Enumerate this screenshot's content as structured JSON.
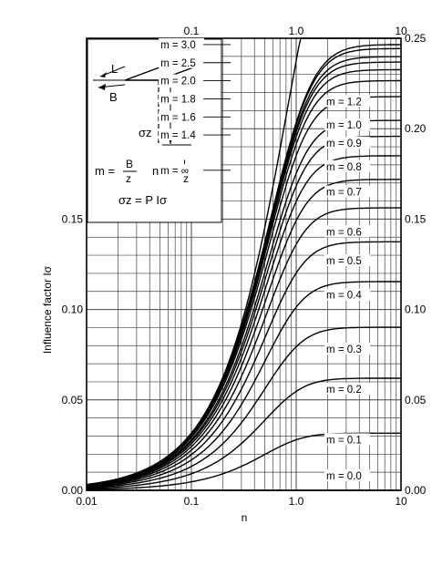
{
  "chart_data": {
    "type": "line",
    "xscale": "log",
    "xlim": [
      0.01,
      10
    ],
    "ylim": [
      0.0,
      0.25
    ],
    "xlabel": "n",
    "ylabel": "Influence factor Iσ",
    "grid": true,
    "bottom_ticks": [
      {
        "value": 0.01,
        "label": "0.01"
      },
      {
        "value": 0.1,
        "label": "0.1"
      },
      {
        "value": 1.0,
        "label": "1.0"
      },
      {
        "value": 10,
        "label": "10"
      }
    ],
    "top_ticks": [
      {
        "value": 0.1,
        "label": "0.1"
      },
      {
        "value": 1.0,
        "label": "1.0"
      },
      {
        "value": 10,
        "label": "10"
      }
    ],
    "left_ticks": [
      {
        "value": 0.0,
        "label": "0.00"
      },
      {
        "value": 0.05,
        "label": "0.05"
      },
      {
        "value": 0.1,
        "label": "0.10"
      },
      {
        "value": 0.15,
        "label": "0.15"
      }
    ],
    "right_ticks": [
      {
        "value": 0.0,
        "label": "0.00"
      },
      {
        "value": 0.05,
        "label": "0.05"
      },
      {
        "value": 0.1,
        "label": "0.10"
      },
      {
        "value": 0.15,
        "label": "0.15"
      },
      {
        "value": 0.2,
        "label": "0.20"
      },
      {
        "value": 0.25,
        "label": "0.25"
      }
    ],
    "series": [
      {
        "name": "m = 0.0",
        "m": 0.0,
        "asymptote": 0.0,
        "label_n": 1.9,
        "label_y": 0.006,
        "side": "right"
      },
      {
        "name": "m = 0.1",
        "m": 0.1,
        "asymptote": 0.0385,
        "label_n": 1.9,
        "label_y": 0.026,
        "side": "right"
      },
      {
        "name": "m = 0.2",
        "m": 0.2,
        "asymptote": 0.0675,
        "label_n": 1.9,
        "label_y": 0.054,
        "side": "right"
      },
      {
        "name": "m = 0.3",
        "m": 0.3,
        "asymptote": 0.0916,
        "label_n": 1.9,
        "label_y": 0.076,
        "side": "right"
      },
      {
        "name": "m = 0.4",
        "m": 0.4,
        "asymptote": 0.1142,
        "label_n": 1.9,
        "label_y": 0.106,
        "side": "right"
      },
      {
        "name": "m = 0.5",
        "m": 0.5,
        "asymptote": 0.1305,
        "label_n": 1.9,
        "label_y": 0.125,
        "side": "right"
      },
      {
        "name": "m = 0.6",
        "m": 0.6,
        "asymptote": 0.1432,
        "label_n": 1.9,
        "label_y": 0.141,
        "side": "right"
      },
      {
        "name": "m = 0.7",
        "m": 0.7,
        "asymptote": 0.156,
        "label_n": 1.9,
        "label_y": 0.163,
        "side": "right"
      },
      {
        "name": "m = 0.8",
        "m": 0.8,
        "asymptote": 0.171,
        "label_n": 1.9,
        "label_y": 0.177,
        "side": "right"
      },
      {
        "name": "m = 0.9",
        "m": 0.9,
        "asymptote": 0.185,
        "label_n": 1.9,
        "label_y": 0.19,
        "side": "right"
      },
      {
        "name": "m = 1.0",
        "m": 1.0,
        "asymptote": 0.1965,
        "label_n": 1.9,
        "label_y": 0.2,
        "side": "right"
      },
      {
        "name": "m = 1.2",
        "m": 1.2,
        "asymptote": 0.205,
        "label_n": 1.9,
        "label_y": 0.213,
        "side": "right"
      },
      {
        "name": "m = 1.4",
        "m": 1.4,
        "asymptote": 0.212,
        "label_n": 0.13,
        "label_y": 0.1945,
        "side": "left"
      },
      {
        "name": "m = 1.6",
        "m": 1.6,
        "asymptote": 0.217,
        "label_n": 0.13,
        "label_y": 0.2045,
        "side": "left"
      },
      {
        "name": "m = 1.8",
        "m": 1.8,
        "asymptote": 0.221,
        "label_n": 0.13,
        "label_y": 0.2145,
        "side": "left"
      },
      {
        "name": "m = 2.0",
        "m": 2.0,
        "asymptote": 0.226,
        "label_n": 0.13,
        "label_y": 0.2245,
        "side": "left"
      },
      {
        "name": "m = 2.5",
        "m": 2.5,
        "asymptote": 0.233,
        "label_n": 0.13,
        "label_y": 0.2345,
        "side": "left"
      },
      {
        "name": "m = 3.0",
        "m": 3.0,
        "asymptote": 0.239,
        "label_n": 0.13,
        "label_y": 0.2445,
        "side": "left"
      },
      {
        "name": "m = ∞",
        "m": "inf",
        "asymptote": 0.25,
        "label_n": 0.13,
        "label_y": 0.175,
        "side": "left"
      }
    ],
    "inset": {
      "label_L": "L",
      "label_B": "B",
      "label_z": "z",
      "label_sigma": "σz",
      "eq_m_lhs": "m =",
      "eq_m_num": "B",
      "eq_m_den": "z",
      "eq_n_lhs": "n =",
      "eq_n_num": "L",
      "eq_n_den": "z",
      "eq_sigma": "σz = P Iσ"
    }
  }
}
